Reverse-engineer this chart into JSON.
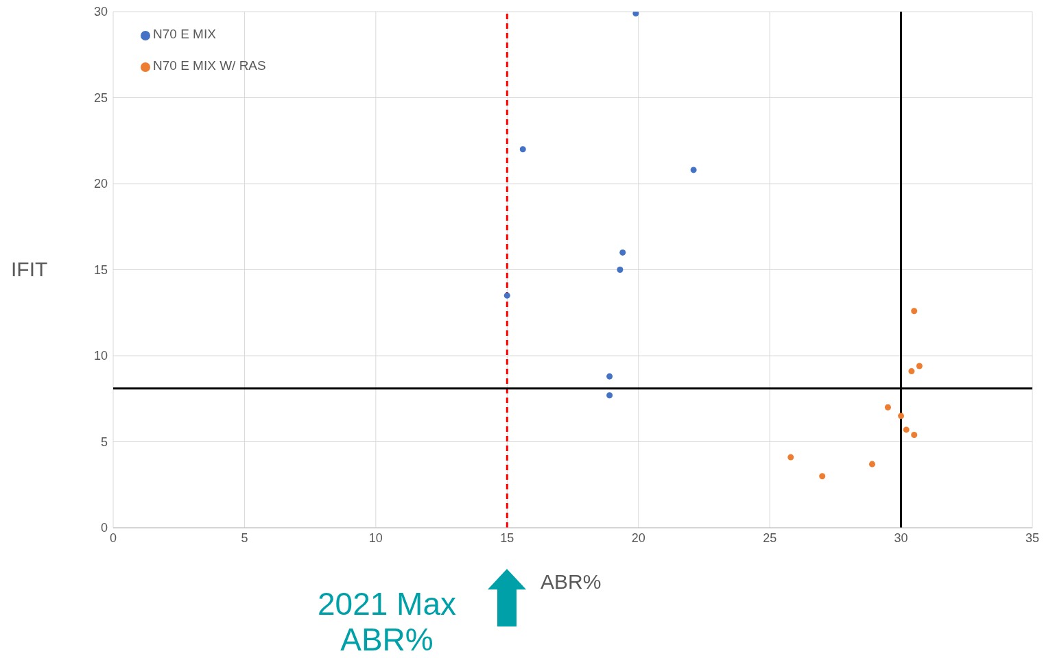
{
  "chart_data": {
    "type": "scatter",
    "xlabel": "ABR%",
    "ylabel": "IFIT",
    "xlim": [
      0,
      35
    ],
    "xticks": [
      0,
      5,
      10,
      15,
      20,
      25,
      30,
      35
    ],
    "ylim": [
      0,
      30
    ],
    "yticks": [
      0,
      5,
      10,
      15,
      20,
      25,
      30
    ],
    "grid": true,
    "legend": "top left",
    "marker": "circle",
    "series": [
      {
        "name": "N70 E MIX",
        "color": "#4472c4",
        "x": [
          19.9,
          15.6,
          22.1,
          19.4,
          19.3,
          15.0,
          18.9,
          18.9
        ],
        "values": [
          29.9,
          22.0,
          20.8,
          16.0,
          15.0,
          13.5,
          8.8,
          7.7
        ]
      },
      {
        "name": "N70 E MIX W/ RAS",
        "color": "#ed7d31",
        "x": [
          30.5,
          30.7,
          30.4,
          29.5,
          30.0,
          30.2,
          30.5,
          25.8,
          27.0,
          28.9
        ],
        "values": [
          12.6,
          9.4,
          9.1,
          7.0,
          6.5,
          5.7,
          5.4,
          4.1,
          3.0,
          3.7
        ]
      }
    ],
    "ref_lines": [
      {
        "axis": "x",
        "value": 15,
        "color": "#ff0000",
        "line_style": "dashed"
      },
      {
        "axis": "x",
        "value": 30,
        "color": "#000000",
        "line_style": "solid"
      },
      {
        "axis": "y",
        "value": 8.1,
        "color": "#000000",
        "line_style": "solid"
      }
    ],
    "annotations": [
      "2021 Max ABR%"
    ]
  }
}
